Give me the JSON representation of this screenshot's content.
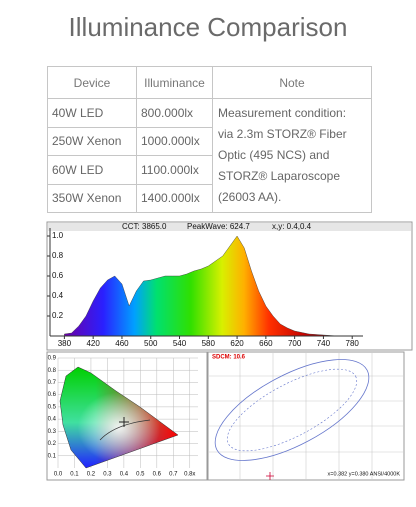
{
  "header": {
    "title": "Illuminance Comparison"
  },
  "table": {
    "columns": [
      "Device",
      "Illuminance",
      "Note"
    ],
    "rows": [
      [
        "40W LED",
        "800.000lx"
      ],
      [
        "250W Xenon",
        "1000.000lx"
      ],
      [
        "60W LED",
        "1100.000lx"
      ],
      [
        "350W Xenon",
        "1400.000lx"
      ]
    ],
    "note": [
      "Measurement condition:",
      "via 2.3m STORZ® Fiber",
      "Optic (495 NCS) and",
      "STORZ® Laparoscope",
      "(26003 AA)."
    ]
  },
  "spectrum": {
    "type": "area",
    "cct": "CCT: 3865.0",
    "peak": "PeakWave: 624.7",
    "xy": "x,y: 0.4,0.4",
    "x": [
      380,
      390,
      400,
      410,
      420,
      430,
      440,
      450,
      460,
      470,
      480,
      490,
      500,
      510,
      520,
      530,
      540,
      550,
      560,
      570,
      580,
      590,
      600,
      610,
      620,
      630,
      640,
      650,
      660,
      670,
      680,
      690,
      700,
      720,
      740,
      760
    ],
    "values": [
      0.02,
      0.03,
      0.1,
      0.2,
      0.35,
      0.48,
      0.56,
      0.6,
      0.52,
      0.3,
      0.45,
      0.55,
      0.56,
      0.58,
      0.6,
      0.6,
      0.6,
      0.62,
      0.65,
      0.67,
      0.7,
      0.75,
      0.8,
      0.9,
      1.0,
      0.88,
      0.65,
      0.45,
      0.3,
      0.2,
      0.12,
      0.08,
      0.05,
      0.02,
      0.01,
      0.0
    ],
    "xlim": [
      360,
      795
    ],
    "ylim": [
      0,
      1.08
    ],
    "xticks": [
      380,
      420,
      460,
      500,
      540,
      580,
      620,
      660,
      700,
      740,
      780
    ],
    "yticks": [
      0.2,
      0.4,
      0.6,
      0.8,
      {
        "value": 1,
        "label": "1.0"
      }
    ]
  },
  "cie": {
    "xlim": [
      0,
      0.85
    ],
    "ylim": [
      0,
      0.9
    ],
    "xticks": [
      {
        "value": 0,
        "label": "0.0"
      },
      0.1,
      0.2,
      0.3,
      0.4,
      0.5,
      0.6,
      0.7,
      {
        "value": 0.8,
        "label": "0.8x"
      }
    ],
    "yticks": [
      0.1,
      0.2,
      0.3,
      0.4,
      0.5,
      0.6,
      0.7,
      0.8,
      0.9
    ]
  },
  "sdcm": {
    "label": "SDCM: 10.6",
    "reading": "x=0.382 y=0.380 ANSI/4000K"
  }
}
